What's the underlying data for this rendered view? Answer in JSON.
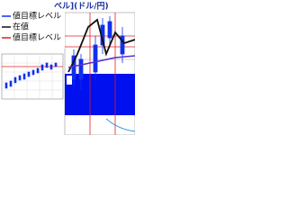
{
  "header": {
    "title": "ベル](ドル/円)"
  },
  "legend": {
    "items": [
      "値目標レベル",
      "在値",
      "値目標レベル"
    ]
  }
}
